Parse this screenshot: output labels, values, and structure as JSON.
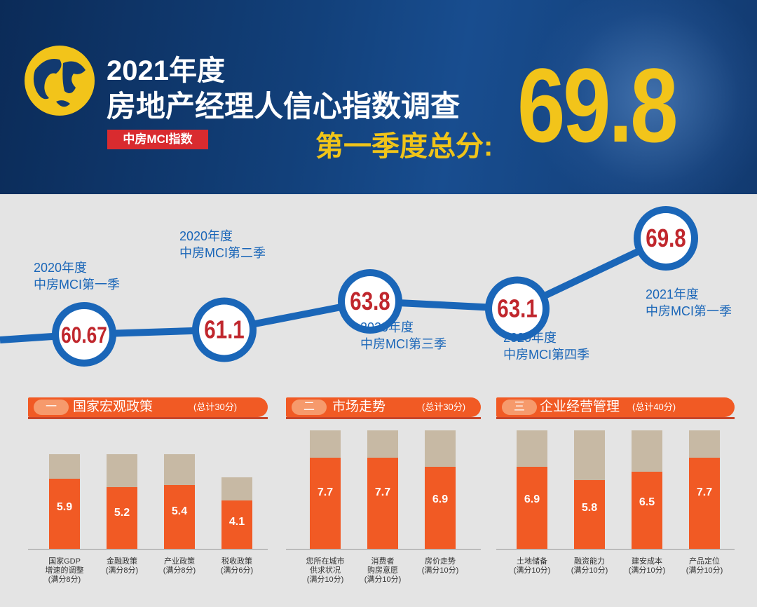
{
  "header": {
    "title_line1": "2021年度",
    "title_line2": "房地产经理人信心指数调查",
    "tag": "中房MCI指数",
    "quarter_label": "第一季度总分:",
    "score": "69.8",
    "colors": {
      "background": "#123a70",
      "accent_yellow": "#f2c41a",
      "tag_red": "#d92b2f"
    }
  },
  "chart_data": [
    {
      "type": "line",
      "x": [
        "2020年度中房MCI第一季",
        "2020年度中房MCI第二季",
        "2020年度中房MCI第三季",
        "2020年度中房MCI第四季",
        "2021年度中房MCI第一季"
      ],
      "values": [
        60.67,
        61.1,
        63.8,
        63.1,
        69.8
      ],
      "value_labels": [
        "60.67",
        "61.1",
        "63.8",
        "63.1",
        "69.8"
      ],
      "point_labels": [
        [
          "2020年度",
          "中房MCI第一季"
        ],
        [
          "2020年度",
          "中房MCI第二季"
        ],
        [
          "2020年度",
          "中房MCI第三季"
        ],
        [
          "2020年度",
          "中房MCI第四季"
        ],
        [
          "2021年度",
          "中房MCI第一季"
        ]
      ],
      "colors": {
        "line": "#1a66b8",
        "value_text": "#c0272d"
      }
    },
    {
      "type": "bar",
      "panel_number": "一",
      "title": "国家宏观政策",
      "total": "(总计30分)",
      "categories": [
        [
          "国家GDP",
          "增速的调整",
          "(满分8分)"
        ],
        [
          "金融政策",
          "(满分8分)"
        ],
        [
          "产业政策",
          "(满分8分)"
        ],
        [
          "税收政策",
          "(满分6分)"
        ]
      ],
      "values": [
        5.9,
        5.2,
        5.4,
        4.1
      ],
      "value_labels": [
        "5.9",
        "5.2",
        "5.4",
        "4.1"
      ],
      "max": [
        8,
        8,
        8,
        6
      ]
    },
    {
      "type": "bar",
      "panel_number": "二",
      "title": "市场走势",
      "total": "(总计30分)",
      "categories": [
        [
          "您所在城市",
          "供求状况",
          "(满分10分)"
        ],
        [
          "消费者",
          "购房意愿",
          "(满分10分)"
        ],
        [
          "房价走势",
          "(满分10分)"
        ]
      ],
      "values": [
        7.7,
        7.7,
        6.9
      ],
      "value_labels": [
        "7.7",
        "7.7",
        "6.9"
      ],
      "max": [
        10,
        10,
        10
      ]
    },
    {
      "type": "bar",
      "panel_number": "三",
      "title": "企业经营管理",
      "total": "(总计40分)",
      "categories": [
        [
          "土地储备",
          "(满分10分)"
        ],
        [
          "融资能力",
          "(满分10分)"
        ],
        [
          "建安成本",
          "(满分10分)"
        ],
        [
          "产品定位",
          "(满分10分)"
        ]
      ],
      "values": [
        6.9,
        5.8,
        6.5,
        7.7
      ],
      "value_labels": [
        "6.9",
        "5.8",
        "6.5",
        "7.7"
      ],
      "max": [
        10,
        10,
        10,
        10
      ]
    }
  ]
}
